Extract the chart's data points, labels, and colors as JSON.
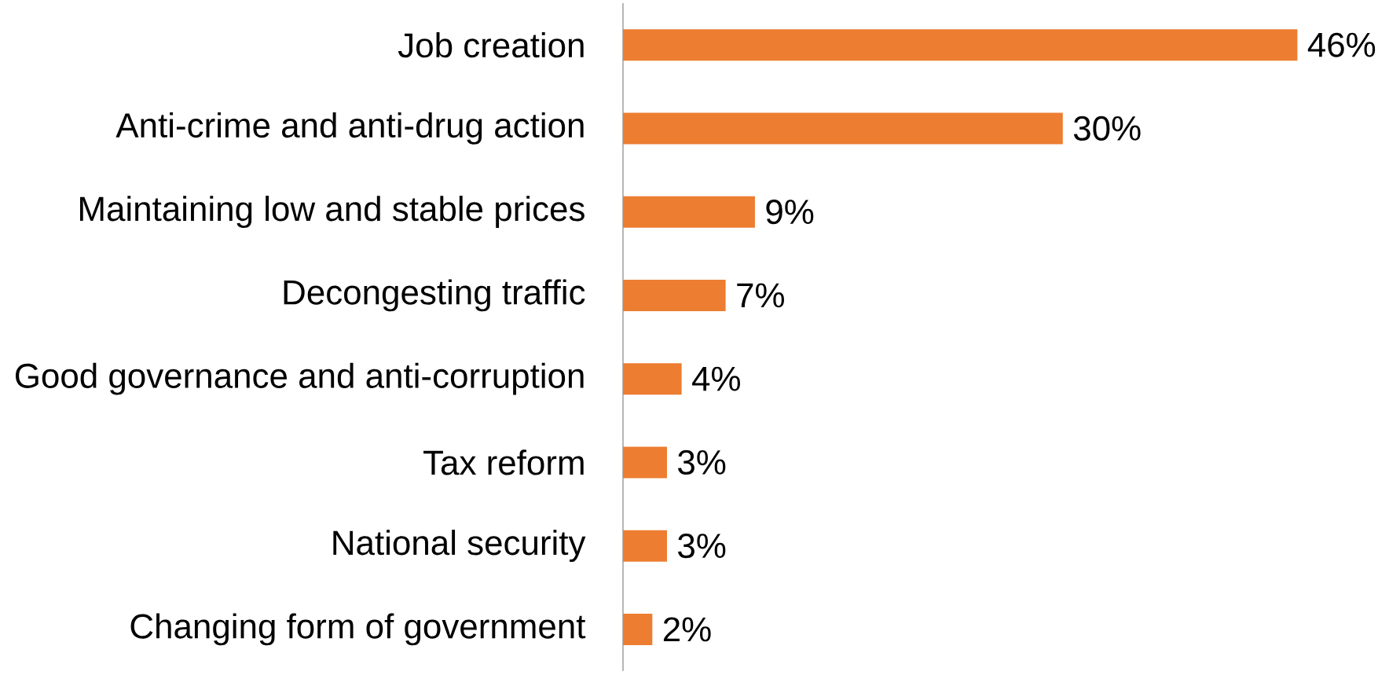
{
  "chart_data": {
    "type": "bar",
    "orientation": "horizontal",
    "categories": [
      "Job creation",
      "Anti-crime and anti-drug action",
      "Maintaining low and stable prices",
      "Decongesting traffic",
      "Good governance and anti-corruption",
      "Tax reform",
      "National security",
      "Changing form of government"
    ],
    "values": [
      46,
      30,
      9,
      7,
      4,
      3,
      3,
      2
    ],
    "value_labels": [
      "46%",
      "30%",
      "9%",
      "7%",
      "4%",
      "3%",
      "3%",
      "2%"
    ],
    "color": "#ed7d31"
  }
}
